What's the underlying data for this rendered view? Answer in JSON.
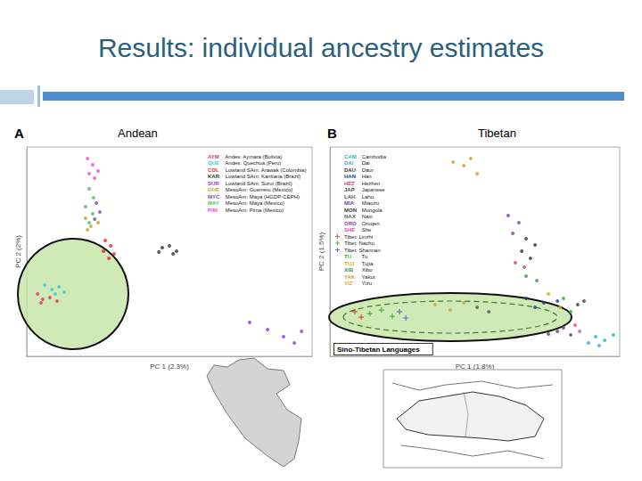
{
  "title": "Results: individual ancestry estimates",
  "chart_data": [
    {
      "type": "scatter",
      "title": "Andean",
      "annotations": [
        "A"
      ],
      "x_label": "PC 1 (2.3%)",
      "y_label": "PC 2 (2%)",
      "xlim": [
        0,
        100
      ],
      "ylim": [
        0,
        100
      ],
      "tick_labels": false,
      "grid": false,
      "legend": "upper right",
      "series": [
        {
          "name": "Andes: Aymara (Bolivia)",
          "code": "AYM",
          "color": "#d9386b",
          "marker": "circle",
          "x": [
            3.8,
            5.6,
            8.1,
            10.6,
            5
          ],
          "y": [
            29.8,
            27.2,
            28.1,
            26.4,
            25.5
          ]
        },
        {
          "name": "Andes: Quechua (Peru)",
          "code": "QUE",
          "color": "#3cc8d6",
          "marker": "circle",
          "x": [
            6.3,
            8.8,
            11.3,
            13.1,
            10
          ],
          "y": [
            34,
            31.9,
            33.2,
            30.6,
            29.8
          ]
        },
        {
          "name": "Lowland SAm: Arawak (Colombia)",
          "code": "COL",
          "color": "#e3261f",
          "marker": "circle",
          "x": [
            27.5,
            29.4,
            26.9,
            30.6,
            28.8
          ],
          "y": [
            55.3,
            52.8,
            50.2,
            48.9,
            46.8
          ]
        },
        {
          "name": "Lowland SAm: Karitiana (Brazil)",
          "code": "KAR",
          "color": "#333333",
          "marker": "circle",
          "x": [
            47.5,
            50,
            52.5,
            51.3,
            46.3
          ],
          "y": [
            51.9,
            52.8,
            50.2,
            48.9,
            49.8
          ]
        },
        {
          "name": "Lowland SAm: Surui (Brazil)",
          "code": "SUR",
          "color": "#8c3fd1",
          "marker": "circle",
          "x": [
            78.1,
            84.4,
            90,
            93.8,
            96.3
          ],
          "y": [
            16.2,
            12.8,
            9.4,
            6.4,
            11.9
          ]
        },
        {
          "name": "MesoAm: Guerrero (Mexico)",
          "code": "GUE",
          "color": "#c8a02a",
          "marker": "circle",
          "x": [
            20.6,
            22.5,
            25,
            21.3
          ],
          "y": [
            66,
            62.1,
            63.8,
            60.4
          ]
        },
        {
          "name": "MesoAm: Maya (HGDP-CEPH)",
          "code": "MYC",
          "color": "#7a4fb0",
          "marker": "circle",
          "x": [
            24.4,
            25.6,
            23.8
          ],
          "y": [
            73.2,
            68.9,
            65.5
          ]
        },
        {
          "name": "MesoAm: Maya (Mexico)",
          "code": "MAY",
          "color": "#5cb85c",
          "marker": "circle",
          "x": [
            21.9,
            23.4,
            20.6,
            23.1,
            21.9
          ],
          "y": [
            80,
            75.7,
            71.5,
            68.1,
            63.8
          ]
        },
        {
          "name": "MesoAm: Pima (Mexico)",
          "code": "PIM",
          "color": "#e24de2",
          "marker": "circle",
          "x": [
            21.3,
            23.1,
            25,
            21.9,
            23.8
          ],
          "y": [
            94.5,
            91.5,
            88.5,
            87.2,
            85.1
          ]
        }
      ]
    },
    {
      "type": "scatter",
      "title": "Tibetan",
      "annotations": [
        "B",
        "Sino-Tibetan Languages"
      ],
      "x_label": "PC 1 (1.8%)",
      "y_label": "PC 2 (1.5%)",
      "xlim": [
        0,
        100
      ],
      "ylim": [
        0,
        100
      ],
      "tick_labels": false,
      "grid": false,
      "legend": "upper left",
      "series": [
        {
          "name": "Cambodia",
          "code": "CAM",
          "color": "#2bb5c8",
          "marker": "circle",
          "x": [
            91.7,
            94.8,
            97.8
          ],
          "y": [
            9.4,
            7.7,
            10.2
          ]
        },
        {
          "name": "Dai",
          "code": "DAI",
          "color": "#4a9ee0",
          "marker": "circle",
          "x": [
            89.2,
            92.9
          ],
          "y": [
            6.4,
            5.1
          ]
        },
        {
          "name": "Daur",
          "code": "DAU",
          "color": "#333333",
          "marker": "circle",
          "x": [
            66.2,
            69.2
          ],
          "y": [
            50.2,
            46.8
          ]
        },
        {
          "name": "Han",
          "code": "HAN",
          "color": "#223a8a",
          "marker": "circle",
          "x": [
            67.7,
            73.8,
            78.5,
            70.8
          ],
          "y": [
            27.7,
            25.5,
            26.4,
            23.4
          ]
        },
        {
          "name": "Hezhen",
          "code": "HEZ",
          "color": "#d0407a",
          "marker": "circle",
          "x": [
            64,
            67.1
          ],
          "y": [
            44.7,
            42.6
          ]
        },
        {
          "name": "Japanese",
          "code": "JAP",
          "color": "#444444",
          "marker": "circle",
          "x": [
            85.5,
            87.7
          ],
          "y": [
            24.7,
            26.4
          ]
        },
        {
          "name": "Lahu",
          "code": "LAH",
          "color": "#555555",
          "marker": "circle",
          "x": [
            75.4,
            78.5
          ],
          "y": [
            10.6,
            11.9
          ]
        },
        {
          "name": "Miaozu",
          "code": "MIA",
          "color": "#7a3a9a",
          "marker": "circle",
          "x": [
            80.6,
            83.1
          ],
          "y": [
            13.6,
            10.2
          ]
        },
        {
          "name": "Mongola",
          "code": "MON",
          "color": "#3a3a3a",
          "marker": "circle",
          "x": [
            67.7,
            70.8
          ],
          "y": [
            56.2,
            53.2
          ]
        },
        {
          "name": "Naxi",
          "code": "NAX",
          "color": "#5a5a5a",
          "marker": "circle",
          "x": [
            50.8,
            54.8
          ],
          "y": [
            23.4,
            21.3
          ]
        },
        {
          "name": "Oroqen",
          "code": "ORO",
          "color": "#8a3ab0",
          "marker": "circle",
          "x": [
            61.5,
            65.2,
            63.1
          ],
          "y": [
            67.2,
            63.8,
            58.7
          ]
        },
        {
          "name": "She",
          "code": "SHE",
          "color": "#e04a9a",
          "marker": "circle",
          "x": [
            84.6,
            86.2
          ],
          "y": [
            14.9,
            11.9
          ]
        },
        {
          "name": "Tibet: Linzhi",
          "color": "#e0262a",
          "marker": "cross",
          "x": [
            8.6,
            10.8
          ],
          "y": [
            21.3,
            18.7
          ]
        },
        {
          "name": "Tibet: Nachu",
          "color": "#2aa02a",
          "marker": "cross",
          "x": [
            13.8,
            17.8,
            21.5
          ],
          "y": [
            20.4,
            22.1,
            19.1
          ]
        },
        {
          "name": "Tibet: Shannan",
          "color": "#2a5ad0",
          "marker": "cross",
          "x": [
            24,
            26.2
          ],
          "y": [
            21.3,
            18.3
          ]
        },
        {
          "name": "Tu",
          "code": "TU",
          "color": "#30b030",
          "marker": "circle",
          "x": [
            80.6,
            83.1
          ],
          "y": [
            27.7,
            21.3
          ]
        },
        {
          "name": "Tujia",
          "code": "TUJ",
          "color": "#c8b020",
          "marker": "circle",
          "x": [
            75.4,
            79.4
          ],
          "y": [
            29.8,
            23.4
          ]
        },
        {
          "name": "Xibo",
          "code": "XIB",
          "color": "#2aa04a",
          "marker": "circle",
          "x": [
            67.7,
            71.4
          ],
          "y": [
            38.3,
            36.2
          ]
        },
        {
          "name": "Yakut",
          "code": "YAK",
          "color": "#d89a2a",
          "marker": "circle",
          "x": [
            42.5,
            46.2,
            48.6,
            50.8
          ],
          "y": [
            92.8,
            91.1,
            94.5,
            87.2
          ]
        },
        {
          "name": "Yizu",
          "code": "YIZ",
          "color": "#d8a020",
          "marker": "circle",
          "x": [
            36.3,
            41.5,
            46.2
          ],
          "y": [
            24.7,
            22.1,
            25.5
          ]
        }
      ]
    }
  ]
}
